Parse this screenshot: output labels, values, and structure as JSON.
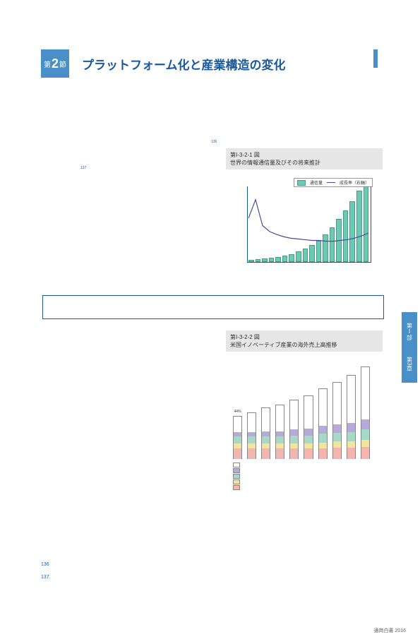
{
  "section": {
    "prefix": "第",
    "num": "2",
    "suffix": "節",
    "title": "プラットフォーム化と産業構造の変化"
  },
  "side": {
    "part": "第Ⅰ部",
    "chapter": "第3章"
  },
  "sup": {
    "a": "136",
    "b": "137"
  },
  "box_title": " ",
  "fig1": {
    "code": "第Ⅰ-3-2-1 図",
    "title": "世界の情報通信量及びその将来推計",
    "legend": {
      "bar": "通信量",
      "line": "成長率（右軸）"
    },
    "bar_color": "#6cc9b3",
    "line_color": "#4a4a9c",
    "bars": [
      1,
      2,
      3,
      4,
      5,
      7,
      9,
      12,
      16,
      21,
      27,
      35,
      45,
      56,
      68,
      80,
      94,
      100
    ],
    "line": [
      60,
      85,
      50,
      42,
      38,
      35,
      33,
      32,
      31,
      30,
      30,
      29,
      29,
      30,
      31,
      33,
      36,
      40
    ]
  },
  "fig2": {
    "code": "第Ⅰ-3-2-2 図",
    "title": "米国イノベーティブ産業の海外売上高推移",
    "colors": {
      "top": "#ffffff",
      "seg_purple": "#b8aad6",
      "seg_green": "#a7d9c8",
      "seg_yellow": "#f3e3a0",
      "seg_pink": "#f2b5b0"
    },
    "border": "#888",
    "pink": [
      12,
      12,
      12,
      12,
      12,
      12,
      12,
      13,
      13,
      14
    ],
    "yellow": [
      6,
      6,
      6,
      6,
      6,
      6,
      7,
      7,
      7,
      8
    ],
    "green": [
      8,
      8,
      8,
      8,
      9,
      9,
      10,
      10,
      11,
      12
    ],
    "purple": [
      5,
      5,
      6,
      6,
      7,
      8,
      9,
      10,
      11,
      12
    ],
    "white": [
      18,
      22,
      27,
      30,
      34,
      38,
      43,
      48,
      54,
      60
    ],
    "labels": [
      "44%",
      "",
      "",
      "",
      "",
      "",
      "",
      "",
      "",
      ""
    ],
    "xlabels_end": "",
    "legend_items": [
      "",
      "",
      "",
      "",
      ""
    ]
  },
  "footnotes": {
    "a": "136",
    "b": "137"
  },
  "footer": "通商白書  2016"
}
